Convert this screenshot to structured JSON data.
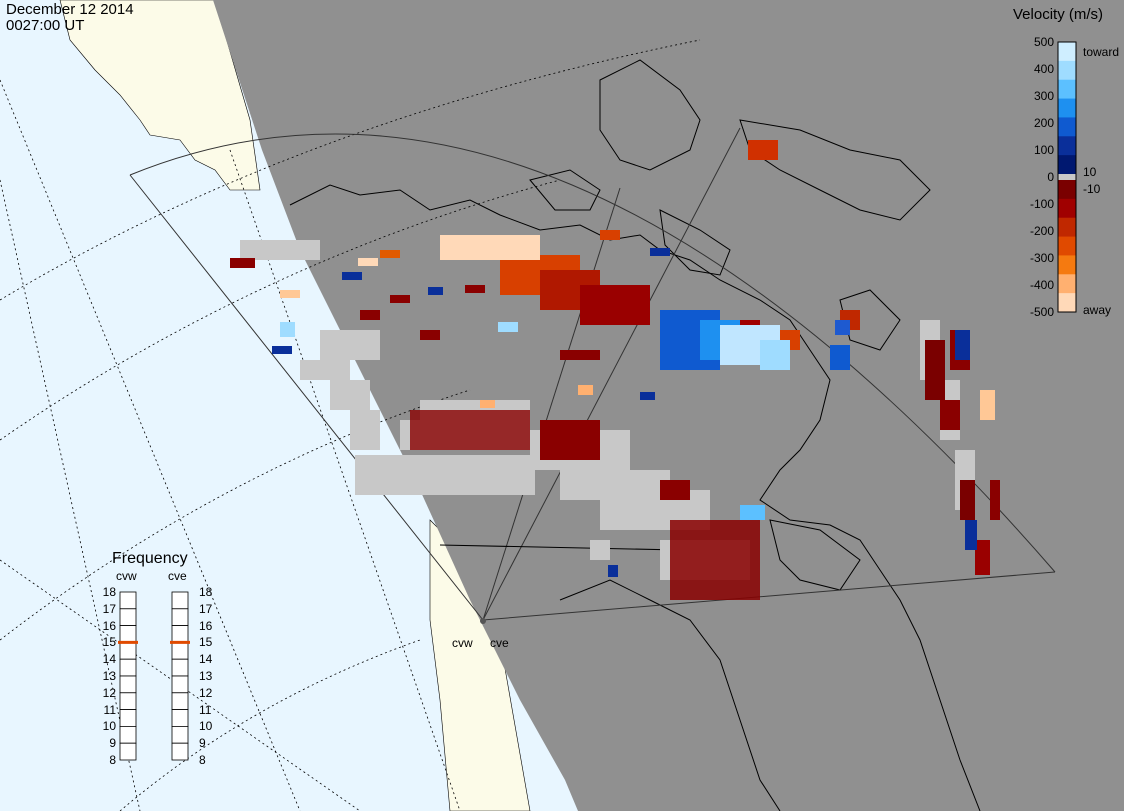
{
  "header": {
    "date": "December 12 2014",
    "time": "0027:00 UT"
  },
  "colorbar": {
    "title": "Velocity (m/s)",
    "ticks": [
      "500",
      "400",
      "300",
      "200",
      "100",
      "0",
      "-100",
      "-200",
      "-300",
      "-400",
      "-500"
    ],
    "inner_label_pos": "10",
    "inner_label_neg": "-10",
    "toward_label": "toward",
    "away_label": "away",
    "colors_toward": [
      "#cfeeff",
      "#9fdcff",
      "#5cc0ff",
      "#1e90f0",
      "#0f5ad0",
      "#0a2f9a",
      "#001870"
    ],
    "colors_away": [
      "#7a0000",
      "#a00000",
      "#c02800",
      "#e04a00",
      "#f57a10",
      "#ffb070",
      "#ffd9b8"
    ],
    "ground_scatter_color": "#c8c8c8"
  },
  "frequency": {
    "title": "Frequency",
    "radars": [
      {
        "name": "cvw",
        "value": 15
      },
      {
        "name": "cve",
        "value": 15
      }
    ],
    "scale": [
      "18",
      "17",
      "16",
      "15",
      "14",
      "13",
      "12",
      "11",
      "10",
      "9",
      "8"
    ]
  },
  "map": {
    "radar_sites": [
      "cvw",
      "cve"
    ],
    "night_color": "#909090",
    "ocean_color": "#e8f6ff",
    "land_day_color": "#fcfbe8"
  }
}
